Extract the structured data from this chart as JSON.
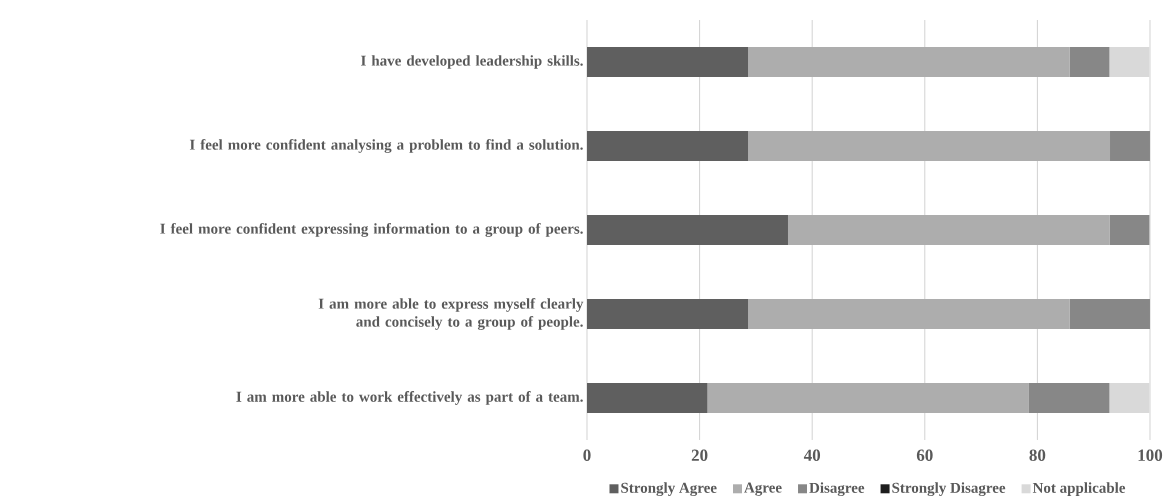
{
  "chart_data": {
    "type": "bar",
    "orientation": "horizontal",
    "stacked": true,
    "categories": [
      "I have developed leadership skills.",
      "I feel more confident analysing a problem to find a solution.",
      "I feel more confident expressing information to a group of peers.",
      "I am more able to express myself clearly and concisely to a group of people.",
      "I am more able to work effectively as part of a team."
    ],
    "series": [
      {
        "name": "Strongly Agree",
        "color": "#5f5f5f",
        "values": [
          28.6,
          28.6,
          35.7,
          28.6,
          21.4
        ]
      },
      {
        "name": "Agree",
        "color": "#adadad",
        "values": [
          57.1,
          64.3,
          57.1,
          57.1,
          57.1
        ]
      },
      {
        "name": "Disagree",
        "color": "#878787",
        "values": [
          7.1,
          7.1,
          7.1,
          14.3,
          14.3
        ]
      },
      {
        "name": "Strongly Disagree",
        "color": "#1e1e1e",
        "values": [
          0,
          0,
          0,
          0,
          0
        ]
      },
      {
        "name": "Not applicable",
        "color": "#d9d9d9",
        "values": [
          7.1,
          0,
          0,
          0,
          7.1
        ]
      }
    ],
    "xlim": [
      0,
      100
    ],
    "xticks": [
      0,
      20,
      40,
      60,
      80,
      100
    ],
    "grid": "x",
    "legend": "bottom"
  }
}
